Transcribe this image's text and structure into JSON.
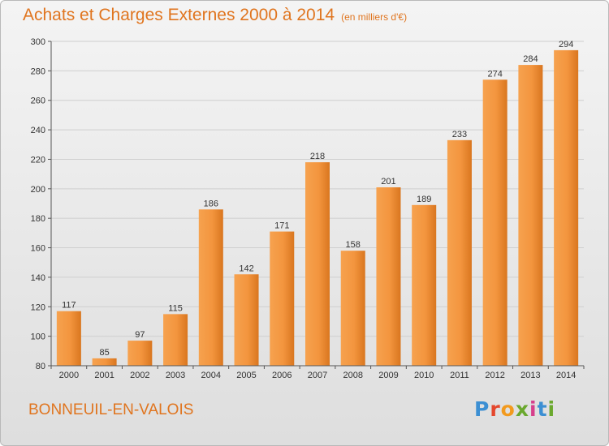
{
  "header": {
    "title": "Achats et Charges Externes 2000 à 2014",
    "unit": "(en milliers d'€)"
  },
  "footer": {
    "place": "BONNEUIL-EN-VALOIS",
    "logo_text": "Proxiti"
  },
  "colors": {
    "bar_light": "#f7a656",
    "bar_dark": "#d9761f",
    "title": "#e0751f",
    "gridline": "#cfcfcf",
    "axis": "#555555"
  },
  "chart_data": {
    "type": "bar",
    "title": "Achats et Charges Externes 2000 à 2014",
    "xlabel": "",
    "ylabel": "",
    "categories": [
      "2000",
      "2001",
      "2002",
      "2003",
      "2004",
      "2005",
      "2006",
      "2007",
      "2008",
      "2009",
      "2010",
      "2011",
      "2012",
      "2013",
      "2014"
    ],
    "values": [
      117,
      85,
      97,
      115,
      186,
      142,
      171,
      218,
      158,
      201,
      189,
      233,
      274,
      284,
      294
    ],
    "ylim": [
      80,
      300
    ],
    "yticks": [
      80,
      100,
      120,
      140,
      160,
      180,
      200,
      220,
      240,
      260,
      280,
      300
    ],
    "grid": true,
    "legend": "none"
  }
}
